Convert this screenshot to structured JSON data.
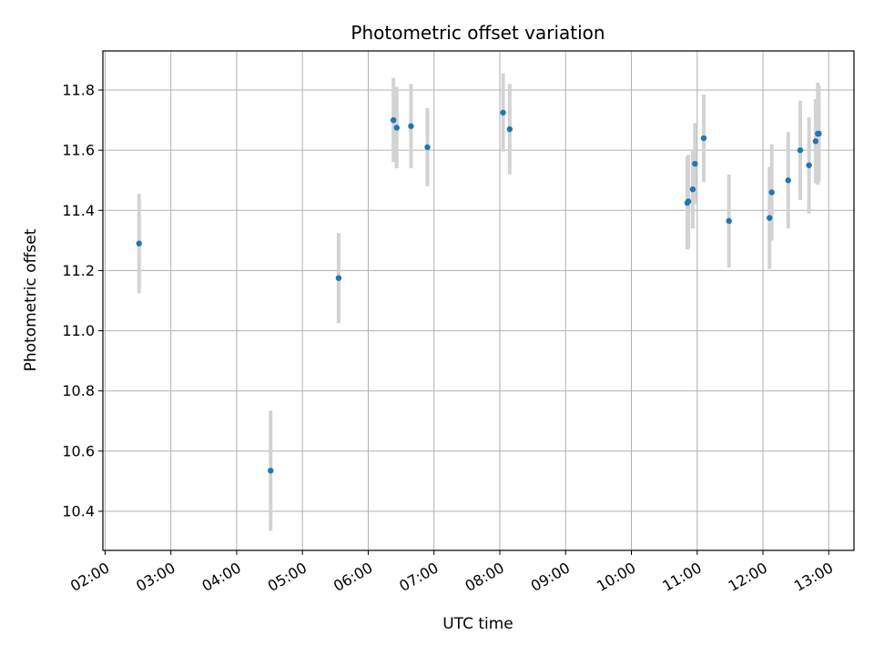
{
  "chart_data": {
    "type": "scatter",
    "title": "Photometric offset variation",
    "xlabel": "UTC time",
    "ylabel": "Photometric offset",
    "x_ticks": [
      "02:00",
      "03:00",
      "04:00",
      "05:00",
      "06:00",
      "07:00",
      "08:00",
      "09:00",
      "10:00",
      "11:00",
      "12:00",
      "13:00"
    ],
    "xlim": [
      "01:58",
      "13:23"
    ],
    "y_ticks": [
      10.4,
      10.6,
      10.8,
      11.0,
      11.2,
      11.4,
      11.6,
      11.8
    ],
    "ylim": [
      10.27,
      11.93
    ],
    "grid": true,
    "point_color": "#1f77b4",
    "errorbar_color": "#d3d3d3",
    "points": [
      {
        "x": "02:31",
        "y": 11.29,
        "err": 0.165
      },
      {
        "x": "04:31",
        "y": 10.535,
        "err": 0.2
      },
      {
        "x": "05:33",
        "y": 11.175,
        "err": 0.15
      },
      {
        "x": "06:23",
        "y": 11.7,
        "err": 0.14
      },
      {
        "x": "06:26",
        "y": 11.675,
        "err": 0.135
      },
      {
        "x": "06:39",
        "y": 11.68,
        "err": 0.14
      },
      {
        "x": "06:54",
        "y": 11.61,
        "err": 0.13
      },
      {
        "x": "08:03",
        "y": 11.725,
        "err": 0.13
      },
      {
        "x": "08:09",
        "y": 11.67,
        "err": 0.15
      },
      {
        "x": "10:51",
        "y": 11.425,
        "err": 0.155
      },
      {
        "x": "10:52",
        "y": 11.43,
        "err": 0.155
      },
      {
        "x": "10:56",
        "y": 11.47,
        "err": 0.13
      },
      {
        "x": "10:58",
        "y": 11.555,
        "err": 0.135
      },
      {
        "x": "11:06",
        "y": 11.64,
        "err": 0.145
      },
      {
        "x": "11:29",
        "y": 11.365,
        "err": 0.155
      },
      {
        "x": "12:06",
        "y": 11.375,
        "err": 0.17
      },
      {
        "x": "12:08",
        "y": 11.46,
        "err": 0.16
      },
      {
        "x": "12:23",
        "y": 11.5,
        "err": 0.16
      },
      {
        "x": "12:34",
        "y": 11.6,
        "err": 0.165
      },
      {
        "x": "12:42",
        "y": 11.55,
        "err": 0.16
      },
      {
        "x": "12:48",
        "y": 11.63,
        "err": 0.14
      },
      {
        "x": "12:50",
        "y": 11.655,
        "err": 0.17
      },
      {
        "x": "12:51",
        "y": 11.655,
        "err": 0.16
      }
    ]
  }
}
